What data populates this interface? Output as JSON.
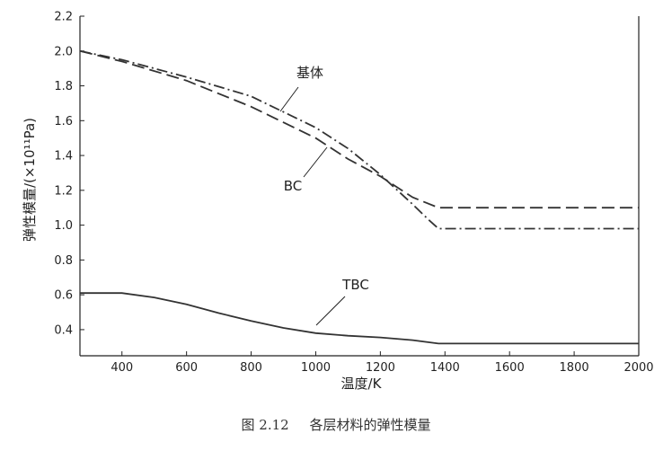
{
  "chart_data": {
    "type": "line",
    "xlabel": "温度/K",
    "ylabel": "弹性模量/(×10¹¹Pa)",
    "xlim": [
      270,
      2000
    ],
    "ylim": [
      0.25,
      2.2
    ],
    "xticks": [
      400,
      600,
      800,
      1000,
      1200,
      1400,
      1600,
      1800,
      2000
    ],
    "yticks": [
      0.4,
      0.6,
      0.8,
      1.0,
      1.2,
      1.4,
      1.6,
      1.8,
      2.0,
      2.2
    ],
    "xtick_labels": [
      "400",
      "600",
      "800",
      "1000",
      "1200",
      "1400",
      "1600",
      "1800",
      "2000"
    ],
    "ytick_labels": [
      "0.4",
      "0.6",
      "0.8",
      "1.0",
      "1.2",
      "1.4",
      "1.6",
      "1.8",
      "2.0",
      "2.2"
    ],
    "grid": false,
    "series": [
      {
        "name": "基体",
        "style": "dash-dot",
        "x": [
          270,
          400,
          600,
          800,
          1000,
          1100,
          1200,
          1300,
          1350,
          1380,
          1500,
          2000
        ],
        "y": [
          2.0,
          1.95,
          1.85,
          1.74,
          1.56,
          1.44,
          1.29,
          1.12,
          1.03,
          0.98,
          0.98,
          0.98
        ]
      },
      {
        "name": "BC",
        "style": "dashed",
        "x": [
          270,
          400,
          600,
          800,
          1000,
          1100,
          1200,
          1300,
          1380,
          1500,
          2000
        ],
        "y": [
          2.0,
          1.94,
          1.83,
          1.68,
          1.5,
          1.38,
          1.28,
          1.16,
          1.1,
          1.1,
          1.1
        ]
      },
      {
        "name": "TBC",
        "style": "solid",
        "x": [
          270,
          400,
          500,
          600,
          700,
          800,
          900,
          1000,
          1100,
          1200,
          1300,
          1380,
          1500,
          2000
        ],
        "y": [
          0.61,
          0.61,
          0.585,
          0.545,
          0.495,
          0.45,
          0.41,
          0.38,
          0.365,
          0.355,
          0.34,
          0.32,
          0.32,
          0.32
        ]
      }
    ],
    "annotations": [
      {
        "text": "基体",
        "series": "基体"
      },
      {
        "text": "BC",
        "series": "BC"
      },
      {
        "text": "TBC",
        "series": "TBC"
      }
    ]
  },
  "caption": {
    "number": "图 2.12",
    "text": "各层材料的弹性模量"
  }
}
